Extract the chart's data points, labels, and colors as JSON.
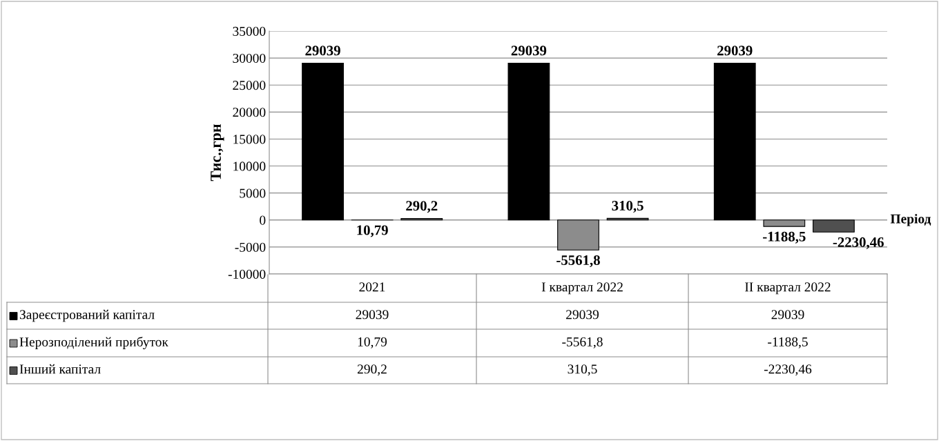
{
  "chart_data": {
    "type": "bar",
    "ylabel": "Тис.,грн",
    "xlabel": "Період",
    "categories": [
      "2021",
      "I квартал 2022",
      "II квартал 2022"
    ],
    "series": [
      {
        "name": "Зареєстрований капітал",
        "color": "#000000",
        "values": [
          29039,
          29039,
          29039
        ],
        "value_labels": [
          "29039",
          "29039",
          "29039"
        ]
      },
      {
        "name": "Нерозподілений прибуток",
        "color": "#8c8c8c",
        "values": [
          10.79,
          -5561.8,
          -1188.5
        ],
        "value_labels": [
          "10,79",
          "-5561,8",
          "-1188,5"
        ]
      },
      {
        "name": "Інший капітал",
        "color": "#505050",
        "values": [
          290.2,
          310.5,
          -2230.46
        ],
        "value_labels": [
          "290,2",
          "310,5",
          "-2230,46"
        ]
      }
    ],
    "ylim": [
      -10000,
      35000
    ],
    "yticks": [
      -10000,
      -5000,
      0,
      5000,
      10000,
      15000,
      20000,
      25000,
      30000,
      35000
    ],
    "grid": "y",
    "tick_labels": "y",
    "legend": "bottom"
  }
}
